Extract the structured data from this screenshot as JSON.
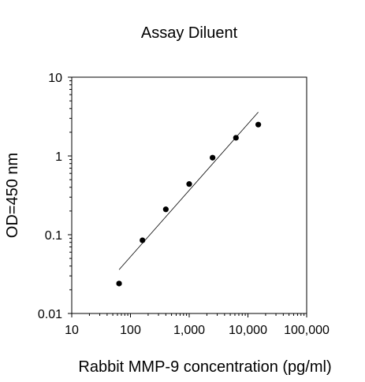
{
  "chart_data": {
    "type": "scatter",
    "title": "Assay Diluent",
    "xlabel": "Rabbit MMP-9 concentration (pg/ml)",
    "ylabel": "OD=450 nm",
    "x_scale": "log",
    "y_scale": "log",
    "xlim": [
      10,
      100000
    ],
    "ylim": [
      0.01,
      10
    ],
    "x_ticks": [
      10,
      100,
      1000,
      10000,
      100000
    ],
    "x_tick_labels": [
      "10",
      "100",
      "1,000",
      "10,000",
      "100,000"
    ],
    "y_ticks": [
      0.01,
      0.1,
      1,
      10
    ],
    "y_tick_labels": [
      "0.01",
      "0.1",
      "1",
      "10"
    ],
    "grid": false,
    "legend": "none",
    "series": [
      {
        "points": [
          {
            "x": 64,
            "y": 0.024
          },
          {
            "x": 160,
            "y": 0.085
          },
          {
            "x": 400,
            "y": 0.21
          },
          {
            "x": 1000,
            "y": 0.44
          },
          {
            "x": 2500,
            "y": 0.95
          },
          {
            "x": 6250,
            "y": 1.7
          },
          {
            "x": 15000,
            "y": 2.5
          }
        ],
        "color": "#000000"
      }
    ],
    "fit_line": {
      "x": [
        64,
        15000
      ],
      "y": [
        0.036,
        3.6
      ],
      "color": "#000000"
    }
  }
}
